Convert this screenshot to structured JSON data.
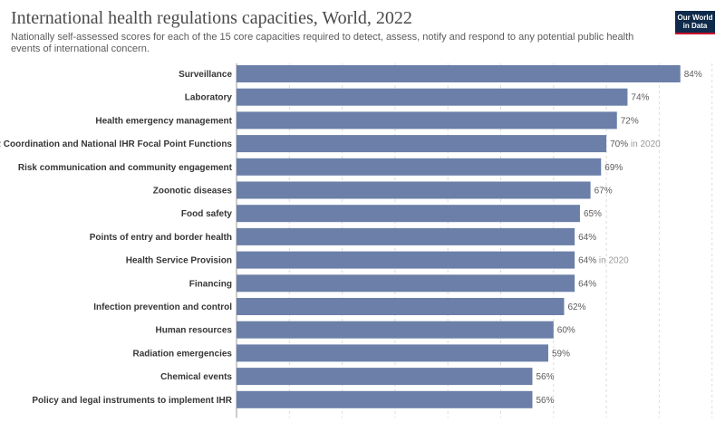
{
  "header": {
    "title": "International health regulations capacities, World, 2022",
    "subtitle": "Nationally self-assessed scores for each of the 15 core capacities required to detect, assess, notify and respond to any potential public health events of international concern.",
    "logo_line1": "Our World",
    "logo_line2": "in Data"
  },
  "colors": {
    "bar": "#6b7fa8",
    "grid": "#dddddd"
  },
  "chart_data": {
    "type": "bar",
    "orientation": "horizontal",
    "xlim": [
      0,
      100
    ],
    "grid": true,
    "categories": [
      "Surveillance",
      "Laboratory",
      "Health emergency management",
      "IHR Coordination and National IHR Focal Point Functions",
      "Risk communication and community engagement",
      "Zoonotic diseases",
      "Food safety",
      "Points of entry and border health",
      "Health Service Provision",
      "Financing",
      "Infection prevention and control",
      "Human resources",
      "Radiation emergencies",
      "Chemical events",
      "Policy and legal instruments to implement IHR"
    ],
    "values": [
      84,
      74,
      72,
      70,
      69,
      67,
      65,
      64,
      64,
      64,
      62,
      60,
      59,
      56,
      56
    ],
    "value_labels": [
      "84%",
      "74%",
      "72%",
      "70%",
      "69%",
      "67%",
      "65%",
      "64%",
      "64%",
      "64%",
      "62%",
      "60%",
      "59%",
      "56%",
      "56%"
    ],
    "value_notes": [
      "",
      "",
      "",
      "in 2020",
      "",
      "",
      "",
      "",
      "in 2020",
      "",
      "",
      "",
      "",
      "",
      ""
    ]
  }
}
